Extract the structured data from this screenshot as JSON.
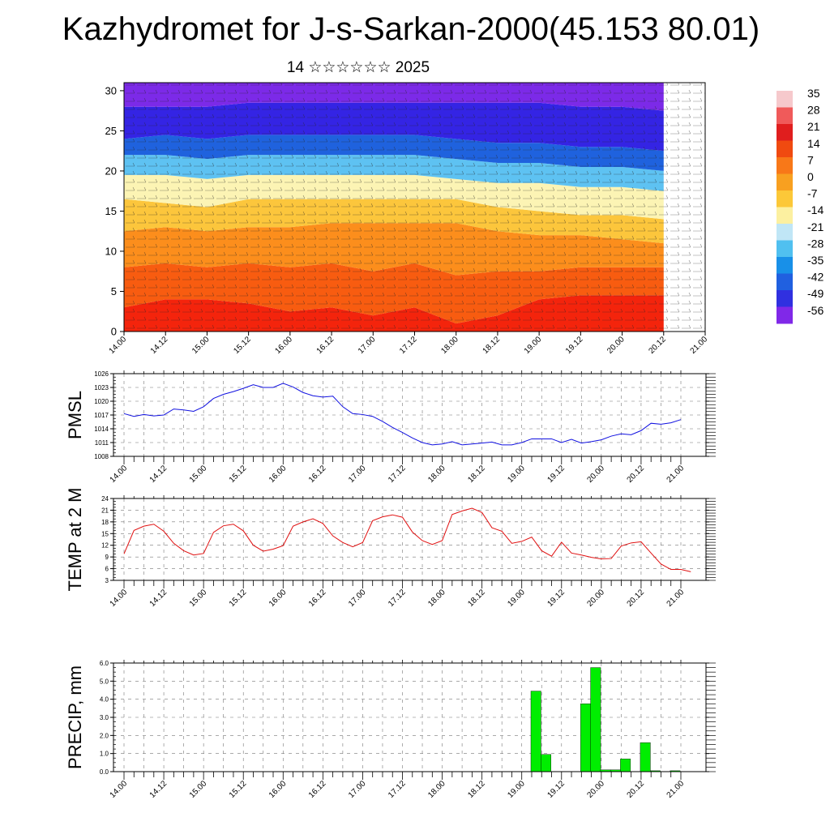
{
  "title": "Kazhydromet for J-s-Sarkan-2000(45.153 80.01)",
  "subtitle": "14 ☆☆☆☆☆☆ 2025",
  "time_ticks": [
    "14.00",
    "14.12",
    "15.00",
    "15.12",
    "16.00",
    "16.12",
    "17.00",
    "17.12",
    "18.00",
    "18.12",
    "19.00",
    "19.12",
    "20.00",
    "20.12",
    "21.00"
  ],
  "colorbar": {
    "labels": [
      "35",
      "28",
      "21",
      "14",
      "7",
      "0",
      "-7",
      "-14",
      "-21",
      "-28",
      "-35",
      "-42",
      "-49",
      "-56"
    ],
    "colors": [
      "#f6c9cc",
      "#f05a5a",
      "#e01e1e",
      "#f04a10",
      "#f87818",
      "#f8a020",
      "#fcc838",
      "#fcf0a0",
      "#c0e6f6",
      "#50c0f0",
      "#1890e8",
      "#2060e0",
      "#3030e0",
      "#8028e8"
    ]
  },
  "chart_data": [
    {
      "type": "heatmap",
      "name": "vertical cross-section",
      "x_ticks": [
        "14.00",
        "14.12",
        "15.00",
        "15.12",
        "16.00",
        "16.12",
        "17.00",
        "17.12",
        "18.00",
        "18.12",
        "19.00",
        "19.12",
        "20.00",
        "20.12",
        "21.00"
      ],
      "y_ticks": [
        "0",
        "5",
        "10",
        "15",
        "20",
        "25",
        "30"
      ],
      "ylim": [
        0,
        31
      ],
      "levels": [
        35,
        28,
        21,
        14,
        7,
        0,
        -7,
        -14,
        -21,
        -28,
        -35,
        -42,
        -49,
        -56
      ],
      "band_boundaries": [
        {
          "x": 0,
          "b": [
            3,
            8,
            12.5,
            16.5,
            19.5,
            22,
            24,
            28
          ]
        },
        {
          "x": 0.5,
          "b": [
            4,
            8.5,
            13,
            16,
            19.5,
            22,
            24.5,
            28
          ]
        },
        {
          "x": 1,
          "b": [
            4,
            8,
            12.5,
            15.5,
            19,
            21.5,
            24,
            28
          ]
        },
        {
          "x": 1.5,
          "b": [
            3.5,
            8.5,
            13,
            16.5,
            19.5,
            22,
            24.5,
            28.5
          ]
        },
        {
          "x": 2,
          "b": [
            2.5,
            8,
            13,
            16.5,
            19.5,
            22,
            24.5,
            28.5
          ]
        },
        {
          "x": 2.5,
          "b": [
            3,
            8.5,
            13.5,
            16.5,
            19.5,
            22,
            24.5,
            28.5
          ]
        },
        {
          "x": 3,
          "b": [
            2,
            7.5,
            13.5,
            16.5,
            19.5,
            22,
            24.5,
            28.5
          ]
        },
        {
          "x": 3.5,
          "b": [
            3,
            8.5,
            13.5,
            16.5,
            19.5,
            22,
            24.5,
            28.5
          ]
        },
        {
          "x": 4,
          "b": [
            1,
            7,
            13.5,
            16.5,
            19,
            21.5,
            24,
            28.5
          ]
        },
        {
          "x": 4.5,
          "b": [
            2,
            7.5,
            12.5,
            15.5,
            18.5,
            21,
            23.5,
            28.5
          ]
        },
        {
          "x": 5,
          "b": [
            4,
            7.5,
            12,
            15,
            18.5,
            21,
            23.5,
            28.5
          ]
        },
        {
          "x": 5.5,
          "b": [
            4.5,
            8,
            12,
            14.5,
            18,
            20.5,
            23,
            28
          ]
        },
        {
          "x": 6,
          "b": [
            4.5,
            8,
            11.5,
            14.5,
            18,
            20.5,
            23,
            28
          ]
        },
        {
          "x": 6.5,
          "b": [
            4.5,
            8,
            11,
            14,
            17.5,
            20,
            22.5,
            27.5
          ]
        }
      ]
    },
    {
      "type": "line",
      "ylabel": "PMSL",
      "ylim": [
        1008,
        1026
      ],
      "yticks": [
        1008,
        1011,
        1014,
        1017,
        1020,
        1023,
        1026
      ],
      "x_ticks": [
        "14.00",
        "14.12",
        "15.00",
        "15.12",
        "16.00",
        "16.12",
        "17.00",
        "17.12",
        "18.00",
        "18.12",
        "19.00",
        "19.12",
        "20.00",
        "20.12",
        "21.00"
      ],
      "x_step_hours": 3,
      "color": "#1010e0",
      "values": [
        1017.3,
        1016.7,
        1017.1,
        1016.8,
        1017.0,
        1018.3,
        1018.1,
        1017.8,
        1018.8,
        1020.6,
        1021.5,
        1022.1,
        1022.8,
        1023.6,
        1023.0,
        1023.0,
        1023.9,
        1023.1,
        1021.9,
        1021.2,
        1020.9,
        1021.1,
        1018.8,
        1017.3,
        1017.1,
        1016.7,
        1015.6,
        1014.3,
        1013.2,
        1012.0,
        1011.0,
        1010.5,
        1010.7,
        1011.2,
        1010.5,
        1010.7,
        1010.9,
        1011.1,
        1010.5,
        1010.5,
        1011.0,
        1011.8,
        1011.8,
        1011.8,
        1011.0,
        1011.7,
        1010.9,
        1011.2,
        1011.6,
        1012.4,
        1012.9,
        1012.7,
        1013.6,
        1015.2,
        1015.0,
        1015.3,
        1016.0
      ]
    },
    {
      "type": "line",
      "ylabel": "TEMP at 2 M",
      "ylim": [
        3,
        24
      ],
      "yticks": [
        3,
        6,
        9,
        12,
        15,
        18,
        21,
        24
      ],
      "x_ticks": [
        "14.00",
        "14.12",
        "15.00",
        "15.12",
        "16.00",
        "16.12",
        "17.00",
        "17.12",
        "18.00",
        "18.12",
        "19.00",
        "19.12",
        "20.00",
        "20.12",
        "21.00"
      ],
      "x_step_hours": 3,
      "color": "#e01010",
      "values": [
        9.8,
        15.8,
        16.9,
        17.4,
        15.6,
        12.5,
        10.6,
        9.5,
        9.9,
        15.3,
        17.0,
        17.4,
        15.7,
        12.0,
        10.5,
        11.0,
        11.9,
        16.9,
        18.0,
        18.8,
        17.6,
        14.4,
        12.7,
        11.6,
        12.7,
        18.3,
        19.3,
        19.8,
        19.2,
        15.4,
        13.2,
        12.2,
        13.2,
        19.9,
        20.8,
        21.5,
        20.4,
        16.5,
        15.6,
        12.5,
        13.0,
        14.1,
        10.6,
        9.2,
        12.8,
        10.0,
        9.5,
        8.9,
        8.5,
        8.6,
        11.8,
        12.6,
        12.9,
        10.0,
        7.2,
        5.8,
        5.8,
        5.2
      ]
    },
    {
      "type": "bar",
      "ylabel": "PRECIP, mm",
      "ylim": [
        0,
        6
      ],
      "yticks": [
        "0.0",
        "1.0",
        "2.0",
        "3.0",
        "4.0",
        "5.0",
        "6.0"
      ],
      "x_ticks": [
        "14.00",
        "14.12",
        "15.00",
        "15.12",
        "16.00",
        "16.12",
        "17.00",
        "17.12",
        "18.00",
        "18.12",
        "19.00",
        "19.12",
        "20.00",
        "20.12",
        "21.00"
      ],
      "x_step_hours": 3,
      "color": "#00ee00",
      "values": [
        0,
        0,
        0,
        0,
        0,
        0,
        0,
        0,
        0,
        0,
        0,
        0,
        0,
        0,
        0,
        0,
        0,
        0,
        0,
        0,
        0,
        0,
        0,
        0,
        0,
        0,
        0,
        0,
        0,
        0,
        0,
        0,
        0,
        0,
        0,
        0,
        0,
        0,
        0,
        0,
        0,
        4.45,
        0.95,
        0,
        0,
        0,
        3.75,
        5.75,
        0.1,
        0.1,
        0.7,
        0,
        1.6,
        0.05,
        0,
        0.05
      ]
    }
  ]
}
